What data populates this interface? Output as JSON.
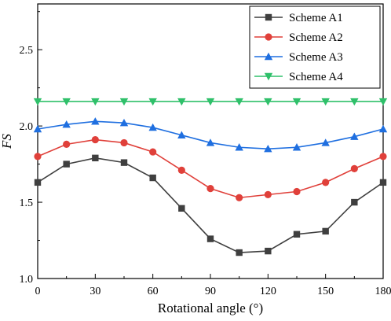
{
  "chart_data": {
    "type": "line",
    "title": "",
    "xlabel": "Rotational angle (°)",
    "ylabel": "FS",
    "x": [
      0,
      15,
      30,
      45,
      60,
      75,
      90,
      105,
      120,
      135,
      150,
      165,
      180
    ],
    "xlim": [
      0,
      180
    ],
    "ylim": [
      1.0,
      2.8
    ],
    "xticks": [
      "0",
      "30",
      "60",
      "90",
      "120",
      "150",
      "180"
    ],
    "xtick_values": [
      0,
      30,
      60,
      90,
      120,
      150,
      180
    ],
    "yticks": [
      "1.0",
      "1.5",
      "2.0",
      "2.5"
    ],
    "ytick_values": [
      1.0,
      1.5,
      2.0,
      2.5
    ],
    "grid": false,
    "legend_position": "top-right",
    "series": [
      {
        "name": "Scheme A1",
        "color": "#3f3f3f",
        "marker": "square",
        "values": [
          1.63,
          1.75,
          1.79,
          1.76,
          1.66,
          1.46,
          1.26,
          1.17,
          1.18,
          1.29,
          1.31,
          1.5,
          1.63
        ]
      },
      {
        "name": "Scheme A2",
        "color": "#e0403a",
        "marker": "circle",
        "values": [
          1.8,
          1.88,
          1.91,
          1.89,
          1.83,
          1.71,
          1.59,
          1.53,
          1.55,
          1.57,
          1.63,
          1.72,
          1.8
        ]
      },
      {
        "name": "Scheme A3",
        "color": "#1f6fe0",
        "marker": "triangle-up",
        "values": [
          1.98,
          2.01,
          2.03,
          2.02,
          1.99,
          1.94,
          1.89,
          1.86,
          1.85,
          1.86,
          1.89,
          1.93,
          1.98
        ]
      },
      {
        "name": "Scheme A4",
        "color": "#2fc06a",
        "marker": "triangle-down",
        "values": [
          2.16,
          2.16,
          2.16,
          2.16,
          2.16,
          2.16,
          2.16,
          2.16,
          2.16,
          2.16,
          2.16,
          2.16,
          2.16
        ]
      }
    ]
  }
}
